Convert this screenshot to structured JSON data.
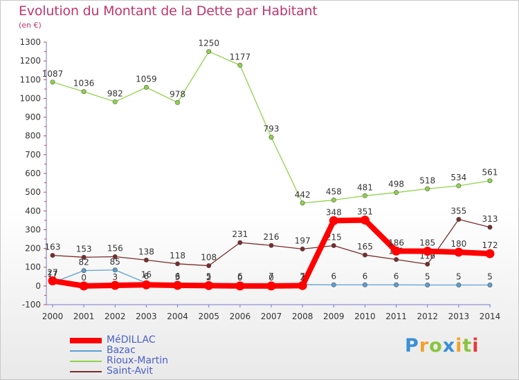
{
  "header": {
    "title": "Evolution du Montant de la Dette par Habitant",
    "unit": "(en €)"
  },
  "chart_data": {
    "type": "line",
    "x": [
      "2000",
      "2001",
      "2002",
      "2003",
      "2004",
      "2005",
      "2006",
      "2007",
      "2008",
      "2009",
      "2010",
      "2011",
      "2012",
      "2013",
      "2014"
    ],
    "ylim": [
      -100,
      1300
    ],
    "yticks": [
      -100,
      0,
      100,
      200,
      300,
      400,
      500,
      600,
      700,
      800,
      900,
      1000,
      1100,
      1200,
      1300
    ],
    "grid": false,
    "legend_position": "bottom-left",
    "series": [
      {
        "name": "Rioux-Martin",
        "color": "#8fd24a",
        "values": [
          1087,
          1036,
          982,
          1059,
          978,
          1250,
          1177,
          793,
          442,
          458,
          481,
          498,
          518,
          534,
          561
        ],
        "labels": [
          "1087",
          "1036",
          "982",
          "1059",
          "978",
          "1250",
          "1177",
          "793",
          "442",
          "458",
          "481",
          "498",
          "518",
          "534",
          "561"
        ]
      },
      {
        "name": "Saint-Avit",
        "color": "#7a2a2a",
        "values": [
          163,
          153,
          156,
          138,
          118,
          108,
          231,
          216,
          197,
          215,
          165,
          141,
          116,
          355,
          313
        ],
        "labels": [
          "163",
          "153",
          "156",
          "138",
          "118",
          "108",
          "231",
          "216",
          "197",
          "215",
          "165",
          "141",
          "116",
          "355",
          "313"
        ]
      },
      {
        "name": "Bazac",
        "color": "#5b9fd4",
        "values": [
          17,
          82,
          85,
          16,
          6,
          5,
          6,
          7,
          7,
          6,
          6,
          6,
          5,
          5,
          5
        ],
        "labels": [
          "17",
          "82",
          "85",
          "16",
          "6",
          "5",
          "6",
          "7",
          "7",
          "6",
          "6",
          "6",
          "5",
          "5",
          "5"
        ]
      },
      {
        "name": "MéDILLAC",
        "color": "#ff0000",
        "values": [
          27,
          0,
          3,
          6,
          3,
          2,
          0,
          0,
          2,
          348,
          351,
          186,
          185,
          180,
          172
        ],
        "labels": [
          "27",
          "0",
          "3",
          "6",
          "3",
          "2",
          "0",
          "0",
          "2",
          "348",
          "351",
          "186",
          "185",
          "180",
          "172"
        ]
      }
    ]
  },
  "legend": {
    "items": [
      {
        "label": "MéDILLAC",
        "color": "#ff0000"
      },
      {
        "label": "Bazac",
        "color": "#5b9fd4"
      },
      {
        "label": "Rioux-Martin",
        "color": "#8fd24a"
      },
      {
        "label": "Saint-Avit",
        "color": "#7a2a2a"
      }
    ]
  },
  "logo": {
    "letters": [
      "P",
      "r",
      "o",
      "x",
      "i",
      "t",
      "i"
    ],
    "colors": [
      "#3a8fd6",
      "#f2a12b",
      "#8ac43f",
      "#3a8fd6",
      "#f2a12b",
      "#8ac43f",
      "#e33b3b"
    ]
  }
}
